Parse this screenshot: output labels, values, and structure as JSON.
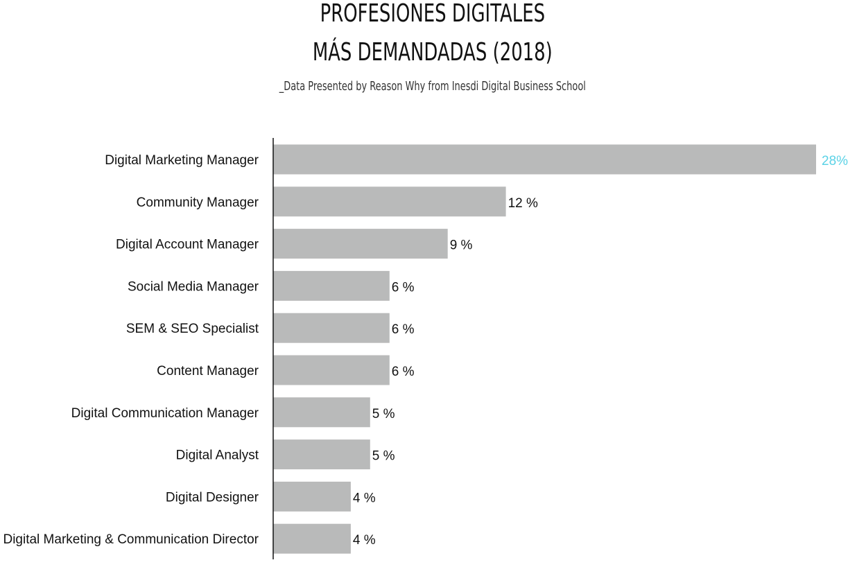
{
  "chart_data": {
    "type": "bar",
    "orientation": "horizontal",
    "title_lines": [
      "PROFESIONES DIGITALES",
      "MÁS DEMANDADAS (2018)"
    ],
    "subtitle": "_Data Presented by Reason Why from Inesdi Digital Business School",
    "categories": [
      "Digital Marketing Manager",
      "Community Manager",
      "Digital Account Manager",
      "Social Media Manager",
      "SEM & SEO Specialist",
      "Content Manager",
      "Digital Communication Manager",
      "Digital Analyst",
      "Digital Designer",
      "Digital Marketing & Communication Director"
    ],
    "values": [
      28,
      12,
      9,
      6,
      6,
      6,
      5,
      5,
      4,
      4
    ],
    "value_labels": [
      "28%",
      "12 %",
      "9 %",
      "6 %",
      "6 %",
      "6 %",
      "5 %",
      "5 %",
      "4 %",
      "4 %"
    ],
    "xlim": [
      0,
      28
    ],
    "grid": false,
    "colors": {
      "bar": "#b9baba",
      "axis": "#111111",
      "highlight_label": "#5ad2e6",
      "label": "#111111"
    }
  }
}
